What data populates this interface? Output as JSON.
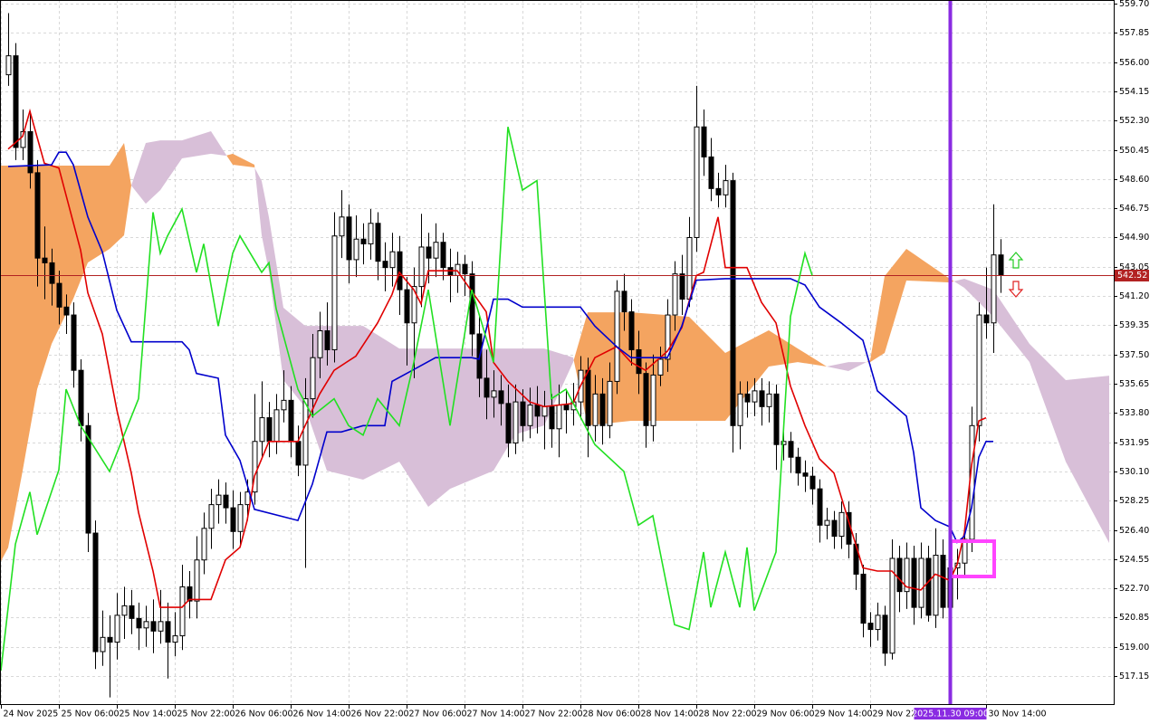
{
  "chart_data": {
    "type": "candlestick",
    "xlim": [
      -1.125,
      152.625
    ],
    "ylim": [
      515.38,
      559.93
    ],
    "grid": true,
    "yticks": [
      {
        "value": 559.7,
        "label": "559.70"
      },
      557.85,
      {
        "value": 556,
        "label": "556.00"
      },
      554.15,
      {
        "value": 552.3,
        "label": "552.30"
      },
      550.45,
      {
        "value": 548.6,
        "label": "548.60"
      },
      546.75,
      {
        "value": 544.9,
        "label": "544.90"
      },
      543.05,
      {
        "value": 541.2,
        "label": "541.20"
      },
      539.35,
      {
        "value": 537.5,
        "label": "537.50"
      },
      535.65,
      {
        "value": 533.8,
        "label": "533.80"
      },
      531.95,
      {
        "value": 530.1,
        "label": "530.10"
      },
      528.25,
      {
        "value": 526.4,
        "label": "526.40"
      },
      524.55,
      {
        "value": 522.7,
        "label": "522.70"
      },
      520.85,
      {
        "value": 519,
        "label": "519.00"
      },
      517.15
    ],
    "xticks": [
      {
        "value": -1,
        "label": "24 Nov 2025"
      },
      {
        "value": 7,
        "label": "25 Nov 06:00"
      },
      {
        "value": 15,
        "label": "25 Nov 14:00"
      },
      {
        "value": 23,
        "label": "25 Nov 22:00"
      },
      {
        "value": 31,
        "label": "26 Nov 06:00"
      },
      {
        "value": 39,
        "label": "26 Nov 14:00"
      },
      {
        "value": 47,
        "label": "26 Nov 22:00"
      },
      {
        "value": 55,
        "label": "27 Nov 06:00"
      },
      {
        "value": 63,
        "label": "27 Nov 14:00"
      },
      {
        "value": 71,
        "label": "27 Nov 22:00"
      },
      {
        "value": 79,
        "label": "28 Nov 06:00"
      },
      {
        "value": 87,
        "label": "28 Nov 14:00"
      },
      {
        "value": 95,
        "label": "28 Nov 22:00"
      },
      {
        "value": 103,
        "label": "29 Nov 06:00"
      },
      {
        "value": 111,
        "label": "29 Nov 14:00"
      },
      {
        "value": 119,
        "label": "29 Nov 22:00"
      },
      {
        "value": 135,
        "label": "30 Nov 14:00"
      }
    ],
    "cursor": {
      "value": 130,
      "label": "2025.11.30 09:00",
      "color": "#8a2be2"
    },
    "current_price": 542.52,
    "current_price_color": "#b22222",
    "candles": {
      "up_color": "#ffffff",
      "down_color": "#000000",
      "open": [
        555.2,
        556.4,
        550.6,
        551.6,
        549.0,
        543.6,
        543.3,
        542.0,
        540.5,
        540.0,
        536.5,
        533.0,
        526.2,
        518.7,
        519.6,
        519.3,
        521.0,
        521.6,
        520.8,
        520.2,
        520.6,
        520.0,
        520.6,
        519.3,
        519.7,
        522.8,
        521.9,
        524.5,
        526.5,
        528.0,
        528.6,
        527.8,
        526.3,
        528.0,
        528.8,
        532.0,
        533.5,
        532.0,
        534.0,
        534.6,
        532.0,
        530.5,
        534.7,
        537.3,
        539.0,
        537.8,
        545.0,
        546.2,
        543.5,
        544.8,
        544.5,
        545.8,
        543.4,
        543.0,
        544.0,
        541.6,
        539.5,
        541.8,
        544.3,
        543.6,
        544.6,
        543.0,
        542.5,
        543.2,
        542.6,
        538.8,
        536.0,
        534.8,
        535.2,
        534.4,
        531.9,
        534.5,
        533.0,
        534.3,
        533.6,
        534.2,
        532.8,
        534.3,
        534.0,
        534.5,
        536.5,
        533.0,
        535.0,
        533.0,
        535.8,
        541.5,
        540.2,
        537.8,
        536.3,
        533.0,
        536.2,
        537.2,
        540.0,
        542.6,
        541.0,
        544.9,
        551.9,
        550.0,
        548.0,
        547.6,
        548.5,
        533.0,
        535.0,
        534.5,
        535.2,
        534.2,
        535.0,
        531.8,
        532.0,
        531.0,
        530.0,
        529.8,
        529.0,
        526.7,
        527.0,
        526.0,
        527.5,
        525.5,
        523.6,
        520.5,
        520.1,
        521.0,
        518.6,
        524.6,
        522.5,
        524.6,
        521.5,
        524.6,
        521.0,
        524.8,
        521.5,
        524.0,
        524.3,
        525.8,
        533.0,
        540.0,
        539.5,
        543.8
      ],
      "high": [
        559.1,
        557.2,
        553.0,
        552.9,
        549.8,
        545.6,
        544.2,
        542.8,
        541.3,
        540.8,
        537.2,
        533.8,
        527.0,
        521.3,
        521.0,
        522.4,
        522.8,
        522.6,
        521.8,
        521.6,
        522.0,
        522.6,
        521.8,
        521.2,
        524.2,
        523.8,
        526.0,
        527.5,
        529.0,
        529.6,
        529.4,
        528.9,
        528.8,
        529.6,
        535.0,
        535.8,
        534.5,
        535.0,
        536.5,
        535.5,
        533.0,
        536.0,
        538.8,
        540.2,
        540.8,
        546.5,
        547.9,
        547.0,
        546.3,
        545.8,
        546.7,
        546.5,
        544.6,
        545.2,
        545.0,
        542.4,
        543.0,
        546.4,
        545.2,
        545.8,
        545.2,
        544.2,
        544.0,
        543.8,
        543.4,
        540.0,
        537.8,
        536.5,
        536.2,
        535.6,
        535.6,
        535.3,
        535.4,
        535.5,
        535.2,
        535.0,
        535.6,
        535.2,
        535.7,
        537.4,
        537.3,
        536.2,
        536.0,
        537.0,
        542.2,
        542.6,
        541.0,
        539.0,
        537.0,
        537.5,
        538.0,
        541.0,
        543.4,
        543.8,
        546.2,
        554.5,
        553.0,
        551.2,
        549.0,
        549.5,
        549.0,
        535.8,
        535.8,
        536.0,
        536.0,
        535.8,
        535.6,
        532.8,
        532.6,
        531.6,
        530.8,
        530.4,
        529.6,
        527.8,
        527.6,
        528.2,
        528.2,
        526.2,
        524.2,
        521.2,
        521.8,
        521.6,
        525.8,
        525.4,
        525.6,
        525.4,
        525.6,
        525.4,
        526.5,
        525.8,
        524.8,
        525.2,
        526.6,
        534.2,
        540.8,
        543.0,
        547.0,
        544.8
      ],
      "low": [
        554.5,
        549.8,
        549.8,
        548.0,
        541.8,
        541.0,
        540.6,
        539.4,
        538.8,
        535.4,
        532.0,
        525.0,
        517.6,
        517.8,
        515.8,
        518.2,
        519.5,
        519.8,
        518.8,
        519.0,
        518.6,
        519.2,
        517.0,
        518.4,
        518.8,
        520.8,
        520.8,
        523.6,
        525.2,
        526.8,
        526.8,
        525.2,
        525.4,
        527.0,
        528.0,
        531.0,
        531.0,
        531.2,
        533.2,
        531.0,
        529.8,
        524.0,
        533.5,
        536.0,
        536.8,
        537.0,
        543.6,
        542.0,
        542.4,
        543.2,
        543.5,
        542.2,
        541.5,
        541.8,
        540.0,
        536.8,
        536.0,
        540.5,
        542.0,
        542.4,
        542.2,
        540.8,
        541.4,
        541.2,
        537.4,
        534.8,
        533.4,
        533.5,
        533.0,
        531.0,
        531.2,
        532.0,
        532.2,
        532.5,
        531.5,
        531.6,
        531.0,
        532.5,
        533.0,
        533.4,
        531.0,
        532.0,
        531.8,
        532.2,
        535.0,
        539.0,
        536.8,
        535.0,
        531.6,
        532.0,
        535.5,
        536.4,
        539.0,
        540.0,
        540.5,
        544.0,
        548.8,
        547.2,
        546.8,
        546.8,
        531.3,
        531.5,
        533.5,
        533.6,
        533.0,
        533.2,
        530.2,
        530.8,
        530.0,
        529.2,
        528.8,
        528.0,
        525.6,
        525.8,
        525.2,
        525.2,
        524.6,
        522.6,
        519.6,
        519.0,
        519.4,
        517.8,
        518.2,
        521.2,
        521.4,
        520.4,
        520.8,
        520.6,
        520.2,
        520.8,
        521.0,
        522.0,
        523.4,
        525.0,
        532.0,
        538.5,
        537.6,
        541.4
      ],
      "close": [
        556.4,
        550.6,
        551.6,
        549.0,
        543.6,
        543.3,
        542.0,
        540.5,
        540.0,
        536.5,
        533.0,
        526.2,
        518.7,
        519.6,
        519.3,
        521.0,
        521.6,
        520.8,
        520.2,
        520.6,
        520.0,
        520.6,
        519.3,
        519.7,
        522.8,
        521.9,
        524.5,
        526.5,
        528.0,
        528.6,
        527.8,
        526.3,
        528.0,
        528.8,
        532.0,
        533.5,
        532.0,
        534.0,
        534.6,
        532.0,
        530.5,
        534.7,
        537.3,
        539.0,
        537.8,
        545.0,
        546.2,
        543.5,
        544.8,
        544.5,
        545.8,
        543.4,
        543.0,
        544.0,
        541.6,
        539.5,
        541.8,
        544.3,
        543.6,
        544.6,
        543.0,
        542.5,
        543.2,
        542.6,
        538.8,
        536.0,
        534.8,
        535.2,
        534.4,
        531.9,
        534.5,
        533.0,
        534.3,
        533.6,
        534.2,
        532.8,
        534.3,
        534.0,
        534.5,
        536.5,
        533.0,
        535.0,
        533.0,
        535.8,
        541.5,
        540.2,
        537.8,
        536.3,
        533.0,
        536.2,
        537.2,
        540.0,
        542.6,
        541.0,
        544.9,
        551.9,
        550.0,
        548.0,
        547.6,
        548.5,
        533.0,
        535.0,
        534.5,
        535.2,
        534.2,
        535.0,
        531.8,
        532.0,
        531.0,
        530.0,
        529.8,
        529.0,
        526.7,
        527.0,
        526.0,
        527.5,
        525.5,
        523.6,
        520.5,
        520.1,
        521.0,
        518.6,
        524.6,
        522.5,
        524.6,
        521.5,
        524.6,
        521.0,
        524.8,
        521.5,
        524.0,
        524.3,
        525.8,
        533.0,
        540.0,
        539.5,
        543.8,
        542.52
      ]
    },
    "cloud": {
      "up_color": "#f4a460",
      "down_color": "#d8bfd8",
      "x": [
        -1,
        0,
        2,
        4,
        6,
        9,
        11,
        14,
        16,
        17,
        19,
        21,
        24,
        28,
        30,
        31,
        34,
        35,
        36,
        38,
        41,
        44,
        49,
        54,
        58,
        61,
        67,
        70,
        74,
        78,
        80,
        86,
        94,
        99,
        105,
        109,
        113,
        116,
        119,
        121,
        124,
        130,
        132,
        136,
        141,
        146,
        152
      ],
      "span_a": [
        549.45,
        549.45,
        549.45,
        549.45,
        549.45,
        549.45,
        549.45,
        549.45,
        550.88,
        548.19,
        547.04,
        547.9,
        549.91,
        550.2,
        550.08,
        550.2,
        549.51,
        545.04,
        542.75,
        535.88,
        534.16,
        530.15,
        529.58,
        530.72,
        527.86,
        529.0,
        530.15,
        532.44,
        533.01,
        537.02,
        540.17,
        540.17,
        539.89,
        537.6,
        539.03,
        537.88,
        536.74,
        536.45,
        537.14,
        542.46,
        544.18,
        542.29,
        541.72,
        539.89,
        537.02,
        530.72,
        525.57
      ],
      "span_b": [
        524.42,
        525.28,
        530.15,
        535.3,
        538.17,
        541.03,
        543.32,
        544.18,
        545.04,
        548.19,
        550.88,
        551.05,
        551.05,
        551.63,
        550.2,
        549.51,
        549.34,
        548.48,
        546.18,
        540.46,
        539.31,
        539.31,
        539.31,
        537.88,
        537.88,
        537.88,
        537.88,
        537.88,
        537.88,
        537.31,
        533.01,
        533.3,
        533.3,
        533.3,
        536.74,
        537.02,
        536.74,
        537.02,
        537.02,
        537.6,
        542.18,
        542.06,
        542.29,
        541.6,
        538.17,
        535.88,
        536.16
      ]
    },
    "series": [
      {
        "color": "#e00000",
        "x": [
          0,
          2,
          3,
          5,
          7,
          10,
          11,
          13,
          15,
          17,
          18,
          20,
          21,
          24,
          25,
          28,
          30,
          32,
          33,
          34,
          36,
          40,
          41,
          43,
          45,
          48,
          51,
          53,
          54,
          56,
          57,
          58,
          62,
          64,
          66,
          67,
          69,
          72,
          74,
          78,
          79,
          81,
          84,
          86,
          88,
          91,
          93,
          95,
          96,
          98,
          99,
          102,
          104,
          106,
          108,
          110,
          112,
          114,
          116,
          118,
          120,
          122,
          124,
          126,
          128,
          130,
          131,
          132,
          133,
          134,
          135
        ],
        "values": [
          550.5,
          551.3,
          552.9,
          549.6,
          549.3,
          544.1,
          541.4,
          538.8,
          534.0,
          530.0,
          527.5,
          523.8,
          521.5,
          521.5,
          522.0,
          522.0,
          524.5,
          525.3,
          527.0,
          529.8,
          532.0,
          532.0,
          533.0,
          535.0,
          536.5,
          537.4,
          539.5,
          541.3,
          542.7,
          541.6,
          540.7,
          542.8,
          542.8,
          541.5,
          540.2,
          537.0,
          535.8,
          534.5,
          534.2,
          534.4,
          535.5,
          537.3,
          538.0,
          537.0,
          536.5,
          537.7,
          539.2,
          542.5,
          542.7,
          546.2,
          543.0,
          543.0,
          540.8,
          539.5,
          535.5,
          533.0,
          530.9,
          530.0,
          527.0,
          524.0,
          523.8,
          523.8,
          522.8,
          522.6,
          523.6,
          523.2,
          524.2,
          526.2,
          530.5,
          533.3,
          533.5
        ]
      },
      {
        "color": "#0000cc",
        "x": [
          0,
          6,
          7,
          8,
          9,
          11,
          13,
          15,
          17,
          24,
          25,
          26,
          29,
          30,
          32,
          34,
          40,
          42,
          44,
          46,
          49,
          52,
          53,
          55,
          57,
          59,
          64,
          65,
          67,
          69,
          71,
          79,
          81,
          84,
          86,
          91,
          93,
          95,
          99,
          108,
          110,
          112,
          115,
          118,
          120,
          124,
          125,
          126,
          128,
          130,
          131,
          132,
          133,
          134,
          135,
          136
        ],
        "values": [
          549.4,
          549.5,
          550.3,
          550.3,
          549.5,
          546.2,
          544.0,
          540.3,
          538.3,
          538.3,
          537.8,
          536.3,
          536.0,
          532.4,
          530.8,
          527.7,
          527.0,
          529.3,
          532.6,
          532.6,
          533.0,
          533.0,
          535.8,
          536.3,
          536.8,
          537.3,
          537.3,
          537.2,
          541.0,
          541.0,
          540.5,
          540.5,
          539.3,
          538.0,
          537.3,
          537.3,
          539.3,
          542.2,
          542.3,
          542.3,
          541.9,
          540.5,
          539.5,
          538.4,
          535.2,
          533.6,
          531.3,
          527.8,
          527.0,
          526.6,
          525.6,
          526.0,
          527.8,
          531.0,
          532.0,
          532.0
        ]
      },
      {
        "color": "#22e022",
        "x": [
          -1,
          1,
          3,
          4,
          7,
          8,
          10,
          14,
          18,
          20,
          21,
          22,
          24,
          26,
          27,
          29,
          31,
          32,
          35,
          36,
          37,
          40,
          42,
          45,
          47,
          49,
          51,
          54,
          56,
          58,
          61,
          64,
          67,
          69,
          71,
          73,
          75,
          77,
          81,
          85,
          87,
          89,
          92,
          94,
          96,
          97,
          99,
          101,
          102,
          103,
          106,
          108,
          110,
          111
        ],
        "values": [
          517.5,
          525.5,
          528.8,
          526.1,
          530.2,
          535.3,
          533.0,
          530.1,
          534.7,
          546.5,
          543.9,
          545.0,
          546.7,
          542.7,
          544.5,
          539.3,
          543.9,
          545.0,
          542.7,
          543.3,
          540.4,
          535.3,
          533.6,
          534.7,
          533.0,
          532.4,
          534.7,
          533.0,
          537.0,
          541.6,
          533.0,
          541.6,
          537.0,
          551.9,
          547.9,
          548.5,
          534.7,
          535.3,
          531.8,
          530.1,
          526.7,
          527.3,
          520.4,
          520.1,
          525.0,
          521.5,
          525.0,
          521.5,
          525.3,
          521.3,
          525.0,
          539.9,
          543.9,
          542.5
        ]
      }
    ]
  }
}
